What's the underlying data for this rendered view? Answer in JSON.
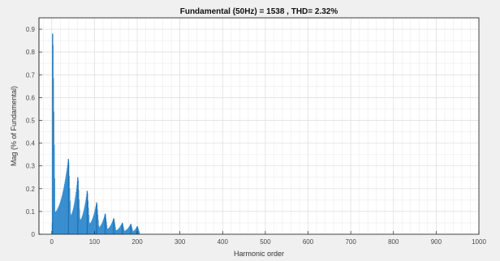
{
  "chart_data": {
    "type": "bar",
    "title": "Fundamental (50Hz) = 1538 , THD= 2.32%",
    "xlabel": "Harmonic order",
    "ylabel": "Mag (% of Fundamental)",
    "xlim": [
      -30,
      1000
    ],
    "ylim": [
      0,
      0.95
    ],
    "xticks": [
      0,
      100,
      200,
      300,
      400,
      500,
      600,
      700,
      800,
      900,
      1000
    ],
    "yticks": [
      0,
      0.1,
      0.2,
      0.3,
      0.4,
      0.5,
      0.6,
      0.7,
      0.8,
      0.9
    ],
    "grid": true,
    "minor_grid": true,
    "bar_color": "#3a8fd0",
    "peaks": [
      {
        "x": 2,
        "y": 0.88
      },
      {
        "x": 39,
        "y": 0.33
      },
      {
        "x": 61,
        "y": 0.25
      },
      {
        "x": 83,
        "y": 0.19
      },
      {
        "x": 105,
        "y": 0.14
      },
      {
        "x": 125,
        "y": 0.09
      },
      {
        "x": 145,
        "y": 0.07
      },
      {
        "x": 165,
        "y": 0.05
      },
      {
        "x": 185,
        "y": 0.045
      },
      {
        "x": 200,
        "y": 0.035
      }
    ]
  }
}
